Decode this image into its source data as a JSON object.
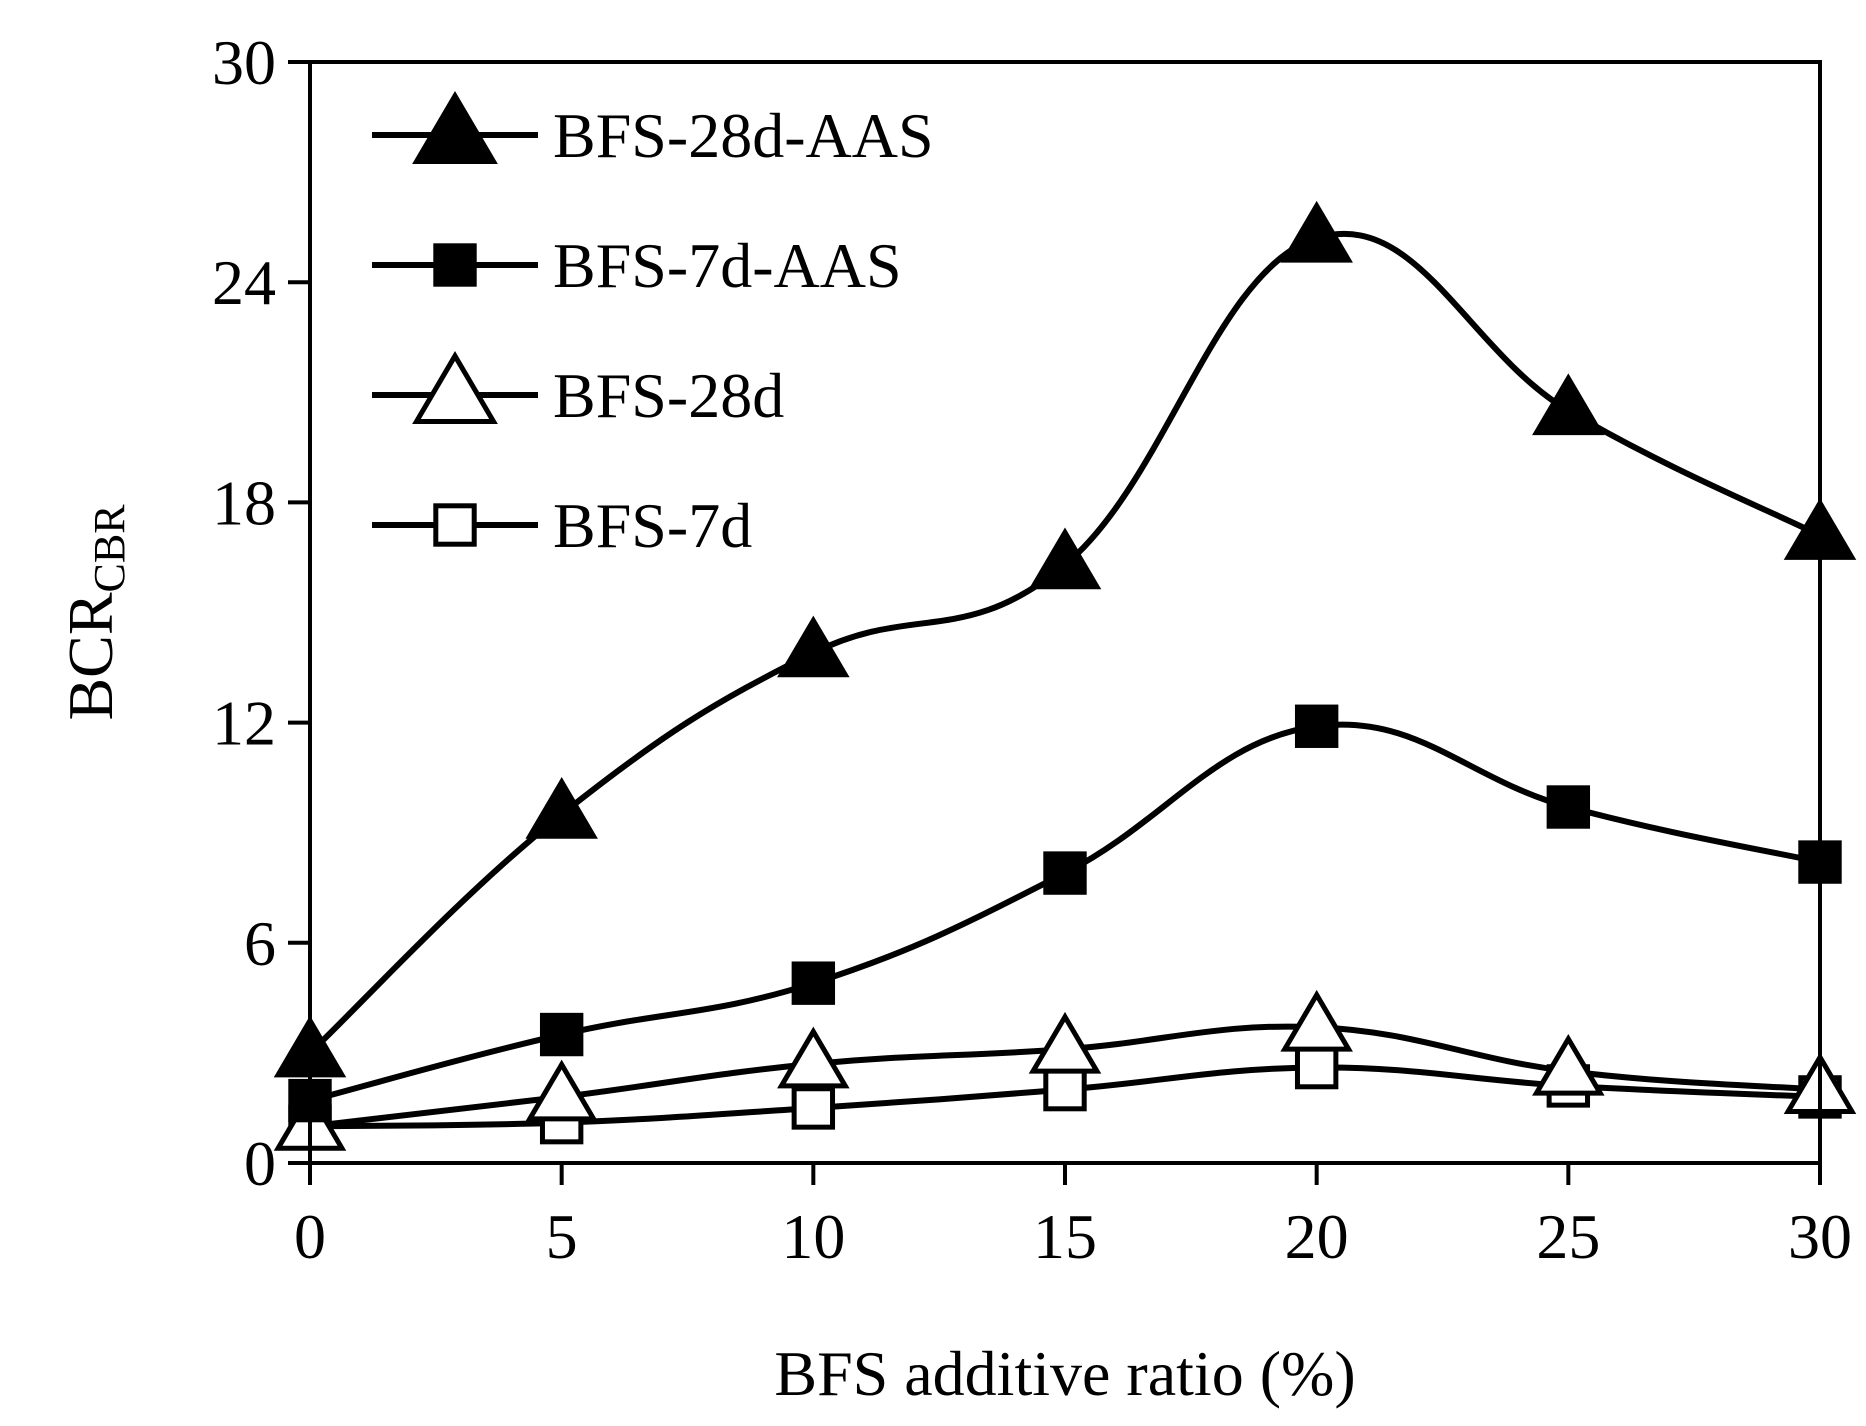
{
  "chart_data": {
    "type": "line",
    "title": "",
    "xlabel": "BFS additive ratio (%)",
    "ylabel": {
      "main": "BCR",
      "subscript": "CBR"
    },
    "xlim": [
      0,
      30
    ],
    "ylim": [
      0,
      30
    ],
    "x_ticks": [
      0,
      5,
      10,
      15,
      20,
      25,
      30
    ],
    "y_ticks": [
      0,
      6,
      12,
      18,
      24,
      30
    ],
    "grid": false,
    "legend_position": "top-left",
    "x": [
      0,
      5,
      10,
      15,
      20,
      25,
      30
    ],
    "series": [
      {
        "name": "BFS-28d-AAS",
        "marker": "triangle",
        "fill": "filled",
        "values": [
          3.0,
          9.5,
          13.9,
          16.3,
          25.2,
          20.5,
          17.1
        ]
      },
      {
        "name": "BFS-7d-AAS",
        "marker": "square",
        "fill": "filled",
        "values": [
          1.7,
          3.5,
          4.9,
          7.9,
          11.9,
          9.7,
          8.2
        ]
      },
      {
        "name": "BFS-28d",
        "marker": "triangle",
        "fill": "open",
        "values": [
          1.0,
          1.8,
          2.7,
          3.1,
          3.7,
          2.5,
          2.0
        ]
      },
      {
        "name": "BFS-7d",
        "marker": "square",
        "fill": "open",
        "values": [
          1.0,
          1.1,
          1.5,
          2.0,
          2.6,
          2.1,
          1.8
        ]
      }
    ]
  }
}
